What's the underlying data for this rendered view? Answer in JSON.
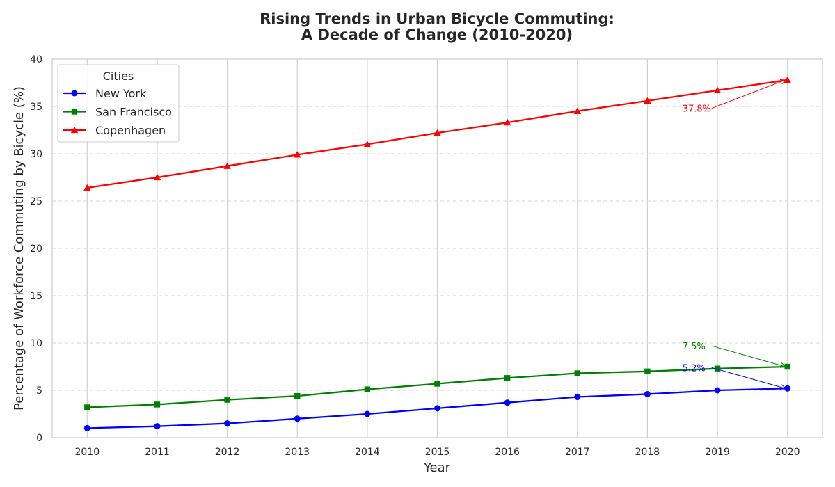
{
  "chart_data": {
    "type": "line",
    "title_lines": [
      "Rising Trends in Urban Bicycle Commuting:",
      "A Decade of Change (2010-2020)"
    ],
    "xlabel": "Year",
    "ylabel": "Percentage of Workforce Commuting by Bicycle (%)",
    "x": [
      2010,
      2011,
      2012,
      2013,
      2014,
      2015,
      2016,
      2017,
      2018,
      2019,
      2020
    ],
    "xlim": [
      2009.5,
      2020.5
    ],
    "ylim": [
      0,
      40
    ],
    "yticks": [
      0,
      5,
      10,
      15,
      20,
      25,
      30,
      35,
      40
    ],
    "grid": true,
    "legend": {
      "title": "Cities",
      "placement": "top-left"
    },
    "series": [
      {
        "name": "New York",
        "color": "#0000ff",
        "marker": "circle",
        "values": [
          1.0,
          1.2,
          1.5,
          2.0,
          2.5,
          3.1,
          3.7,
          4.3,
          4.6,
          5.0,
          5.2
        ]
      },
      {
        "name": "San Francisco",
        "color": "#008000",
        "marker": "square",
        "values": [
          3.2,
          3.5,
          4.0,
          4.4,
          5.1,
          5.7,
          6.3,
          6.8,
          7.0,
          7.3,
          7.5
        ]
      },
      {
        "name": "Copenhagen",
        "color": "#ff0000",
        "marker": "triangle",
        "values": [
          26.4,
          27.5,
          28.7,
          29.9,
          31.0,
          32.2,
          33.3,
          34.5,
          35.6,
          36.7,
          37.8
        ]
      }
    ],
    "annotations": [
      {
        "text": "37.8%",
        "color": "#ff0000",
        "target": [
          2020,
          37.8
        ],
        "text_at": [
          2018.5,
          34.8
        ]
      },
      {
        "text": "7.5%",
        "color": "#008000",
        "target": [
          2020,
          7.5
        ],
        "text_at": [
          2018.5,
          9.7
        ]
      },
      {
        "text": "5.2%",
        "color": "#0000ff",
        "target": [
          2020,
          5.2
        ],
        "text_at": [
          2018.5,
          7.4
        ]
      }
    ]
  }
}
